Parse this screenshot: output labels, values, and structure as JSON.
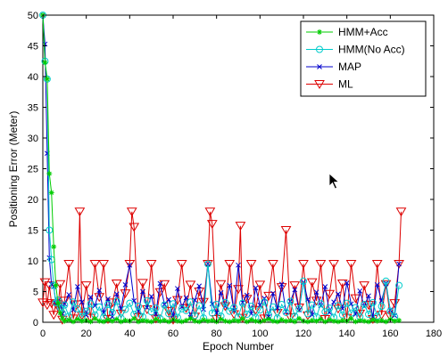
{
  "chart_data": {
    "type": "line",
    "title": "",
    "xlabel": "Epoch Number",
    "ylabel": "Positioning Error (Meter)",
    "xlim": [
      0,
      180
    ],
    "ylim": [
      0,
      50
    ],
    "xticks": [
      0,
      20,
      40,
      60,
      80,
      100,
      120,
      140,
      160,
      180
    ],
    "yticks": [
      0,
      5,
      10,
      15,
      20,
      25,
      30,
      35,
      40,
      45,
      50
    ],
    "grid": false,
    "legend_position": "top-right",
    "series": [
      {
        "name": "HMM+Acc",
        "color": "#00cc00",
        "marker": "star",
        "x": [
          0,
          1,
          2,
          3,
          4,
          5,
          6,
          7,
          8,
          9,
          10,
          12,
          14,
          16,
          18,
          20,
          22,
          24,
          26,
          28,
          30,
          32,
          34,
          36,
          38,
          40,
          42,
          44,
          46,
          48,
          50,
          52,
          54,
          56,
          58,
          60,
          62,
          64,
          66,
          68,
          70,
          72,
          74,
          76,
          78,
          80,
          82,
          84,
          86,
          88,
          90,
          92,
          94,
          96,
          98,
          100,
          102,
          104,
          106,
          108,
          110,
          112,
          114,
          116,
          118,
          120,
          122,
          124,
          126,
          128,
          130,
          132,
          134,
          136,
          138,
          140,
          142,
          144,
          146,
          148,
          150,
          152,
          154,
          156,
          158,
          160,
          162,
          164
        ],
        "y": [
          50,
          42.3,
          39.6,
          24.2,
          21.1,
          12.3,
          6.0,
          3.1,
          1.5,
          0.6,
          0.2,
          0.4,
          0.1,
          0.5,
          0.2,
          0.3,
          0.1,
          0.6,
          0.2,
          0.1,
          0.4,
          0.2,
          0.5,
          0.1,
          0.3,
          0.2,
          0.6,
          0.1,
          0.3,
          0.2,
          0.1,
          0.5,
          0.2,
          0.3,
          0.1,
          0.4,
          0.2,
          0.1,
          0.3,
          0.6,
          0.2,
          0.1,
          0.4,
          0.2,
          0.3,
          0.1,
          0.5,
          0.2,
          0.1,
          0.3,
          0.2,
          0.6,
          0.1,
          0.4,
          0.2,
          0.1,
          0.3,
          0.5,
          0.2,
          0.1,
          0.4,
          0.2,
          0.3,
          0.1,
          0.6,
          0.2,
          0.1,
          0.3,
          0.2,
          0.5,
          0.1,
          0.4,
          0.2,
          0.1,
          0.3,
          0.2,
          0.6,
          0.1,
          0.3,
          0.2,
          0.1,
          0.4,
          0.2,
          0.3,
          0.1,
          0.5,
          0.2,
          0.3
        ]
      },
      {
        "name": "HMM(No Acc)",
        "color": "#00cccc",
        "marker": "circle",
        "x": [
          0,
          1,
          2,
          3,
          4,
          5,
          6,
          7,
          8,
          9,
          10,
          12,
          14,
          16,
          18,
          20,
          22,
          24,
          26,
          28,
          30,
          32,
          34,
          36,
          38,
          40,
          42,
          44,
          46,
          48,
          50,
          52,
          54,
          56,
          58,
          60,
          62,
          64,
          66,
          68,
          70,
          72,
          74,
          76,
          78,
          80,
          82,
          84,
          86,
          88,
          90,
          92,
          94,
          96,
          98,
          100,
          102,
          104,
          106,
          108,
          110,
          112,
          114,
          116,
          118,
          120,
          122,
          124,
          126,
          128,
          130,
          132,
          134,
          136,
          138,
          140,
          142,
          144,
          146,
          148,
          150,
          152,
          154,
          156,
          158,
          160,
          162,
          164
        ],
        "y": [
          50,
          42.5,
          39.6,
          15.0,
          10.2,
          6.0,
          3.2,
          3.6,
          2.4,
          1.5,
          2.8,
          1.0,
          3.3,
          2.2,
          0.9,
          1.8,
          3.0,
          1.2,
          2.5,
          0.8,
          2.9,
          1.6,
          3.4,
          0.7,
          2.1,
          3.1,
          1.3,
          2.6,
          0.9,
          3.5,
          1.7,
          2.3,
          0.6,
          2.8,
          1.4,
          3.0,
          0.8,
          2.2,
          1.9,
          3.3,
          1.1,
          2.7,
          0.7,
          9.5,
          1.5,
          2.9,
          1.0,
          3.2,
          1.8,
          2.4,
          0.9,
          3.1,
          1.3,
          2.6,
          0.8,
          2.0,
          3.3,
          1.2,
          2.5,
          0.7,
          2.9,
          1.6,
          3.4,
          1.0,
          2.2,
          6.7,
          1.4,
          2.8,
          0.9,
          3.0,
          1.7,
          2.3,
          0.8,
          2.7,
          1.2,
          3.1,
          1.5,
          2.4,
          0.9,
          2.9,
          1.3,
          3.2,
          1.0,
          2.6,
          6.7,
          1.8,
          0.9,
          6.0
        ]
      },
      {
        "name": "MAP",
        "color": "#0000cc",
        "marker": "x",
        "x": [
          0,
          1,
          2,
          3,
          4,
          5,
          6,
          7,
          8,
          9,
          10,
          12,
          14,
          16,
          18,
          20,
          22,
          24,
          26,
          28,
          30,
          32,
          34,
          36,
          38,
          40,
          42,
          44,
          46,
          48,
          50,
          52,
          54,
          56,
          58,
          60,
          62,
          64,
          66,
          68,
          70,
          72,
          74,
          76,
          78,
          80,
          82,
          84,
          86,
          88,
          90,
          92,
          94,
          96,
          98,
          100,
          102,
          104,
          106,
          108,
          110,
          112,
          114,
          116,
          118,
          120,
          122,
          124,
          126,
          128,
          130,
          132,
          134,
          136,
          138,
          140,
          142,
          144,
          146,
          148,
          150,
          152,
          154,
          156,
          158,
          160,
          162,
          164
        ],
        "y": [
          50,
          45.3,
          27.5,
          10.5,
          6.2,
          5.8,
          3.1,
          3.5,
          2.6,
          1.4,
          3.0,
          4.5,
          2.0,
          5.8,
          3.3,
          1.2,
          4.1,
          2.7,
          5.2,
          1.6,
          3.8,
          0.9,
          4.6,
          2.2,
          6.1,
          9.3,
          3.5,
          1.8,
          5.0,
          2.4,
          4.2,
          1.3,
          6.3,
          2.9,
          3.7,
          1.1,
          5.5,
          2.5,
          4.0,
          0.8,
          3.6,
          5.9,
          2.1,
          9.5,
          3.0,
          1.5,
          4.8,
          2.6,
          6.0,
          1.9,
          9.3,
          3.2,
          4.4,
          1.4,
          5.6,
          2.8,
          3.9,
          0.9,
          4.7,
          2.3,
          6.2,
          1.7,
          3.4,
          5.3,
          2.0,
          6.5,
          3.7,
          1.2,
          4.9,
          2.7,
          5.8,
          1.6,
          3.3,
          4.6,
          2.2,
          6.4,
          3.0,
          1.3,
          5.1,
          2.6,
          4.3,
          0.9,
          6.1,
          3.5,
          6.3,
          2.0,
          1.1,
          9.5
        ]
      },
      {
        "name": "ML",
        "color": "#dd0000",
        "marker": "triangle-down",
        "x": [
          0,
          1,
          2,
          3,
          4,
          5,
          6,
          7,
          8,
          9,
          10,
          12,
          14,
          16,
          17,
          18,
          20,
          22,
          24,
          26,
          28,
          30,
          32,
          34,
          36,
          38,
          40,
          41,
          42,
          44,
          46,
          48,
          50,
          52,
          54,
          56,
          58,
          60,
          62,
          64,
          66,
          68,
          70,
          72,
          74,
          76,
          77,
          78,
          80,
          82,
          84,
          86,
          88,
          90,
          91,
          92,
          94,
          96,
          98,
          100,
          102,
          104,
          106,
          108,
          110,
          112,
          114,
          116,
          118,
          120,
          122,
          124,
          126,
          128,
          130,
          132,
          134,
          136,
          138,
          140,
          142,
          144,
          146,
          148,
          150,
          152,
          154,
          156,
          158,
          160,
          162,
          164,
          165
        ],
        "y": [
          3.2,
          6.5,
          2.8,
          6.0,
          3.1,
          1.2,
          3.0,
          2.5,
          6.2,
          0.4,
          3.5,
          9.5,
          0.6,
          2.9,
          18.0,
          1.1,
          6.0,
          0.7,
          9.5,
          4.1,
          9.5,
          0.5,
          3.2,
          6.3,
          1.4,
          4.7,
          9.5,
          18.0,
          15.5,
          0.8,
          6.4,
          2.1,
          9.5,
          0.6,
          4.9,
          6.2,
          1.8,
          0.4,
          3.6,
          9.5,
          2.3,
          6.1,
          0.9,
          5.0,
          3.3,
          9.5,
          18.0,
          16.0,
          0.5,
          6.2,
          2.6,
          9.5,
          1.3,
          5.4,
          15.7,
          0.7,
          3.8,
          9.5,
          2.0,
          6.1,
          0.6,
          4.3,
          9.5,
          1.5,
          5.7,
          15.0,
          0.8,
          6.0,
          2.4,
          9.5,
          1.1,
          6.5,
          3.5,
          9.5,
          0.5,
          4.6,
          9.5,
          2.2,
          6.3,
          0.7,
          9.5,
          3.9,
          1.4,
          6.0,
          2.8,
          0.5,
          9.5,
          1.2,
          6.2,
          0.9,
          3.1,
          9.5,
          18.0
        ]
      }
    ]
  }
}
